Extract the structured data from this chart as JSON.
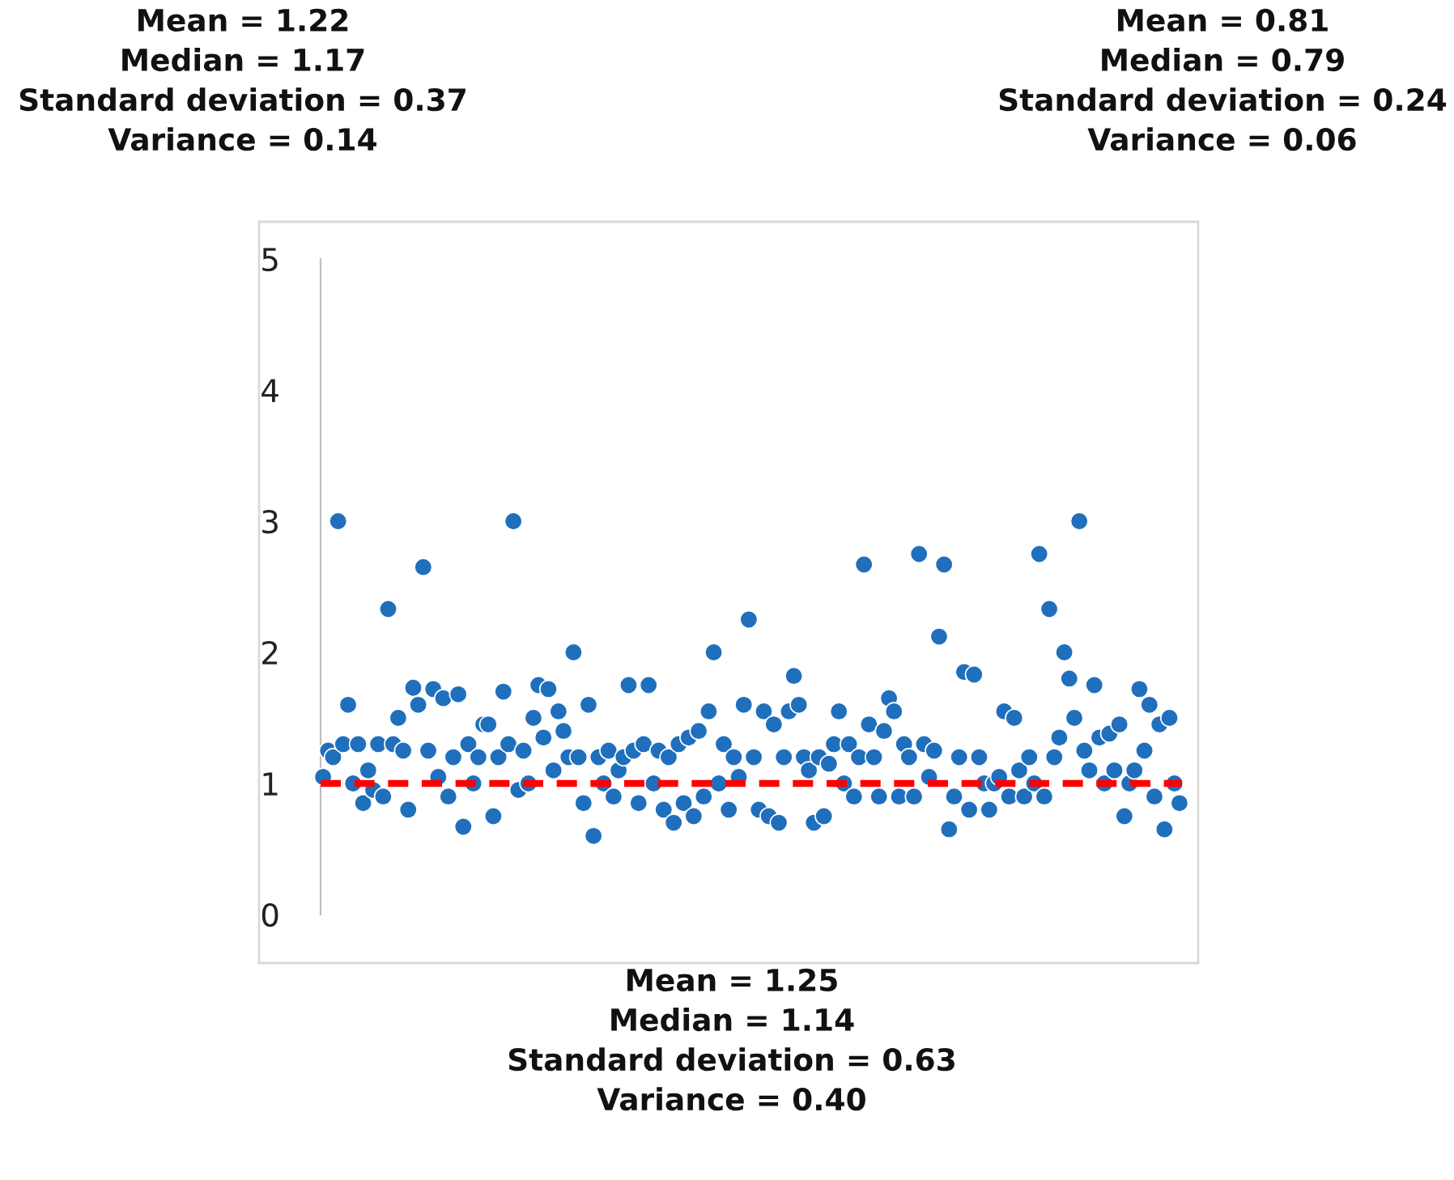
{
  "chart_data": {
    "type": "scatter",
    "categories": [
      null,
      null,
      null,
      null,
      null,
      null,
      null,
      null,
      null,
      null,
      null,
      null,
      null,
      null,
      null,
      null,
      null,
      null,
      null,
      null,
      null,
      null,
      null,
      null,
      null,
      null,
      null,
      null,
      null,
      null,
      null,
      null,
      null,
      null,
      null,
      null,
      null,
      null,
      null,
      null,
      null,
      null,
      null,
      null,
      null,
      null,
      null,
      null,
      null,
      null,
      null,
      null,
      null,
      null,
      null,
      null,
      null,
      null,
      null,
      null,
      null,
      null,
      null,
      null,
      null,
      null,
      null,
      null,
      null,
      null,
      null,
      null,
      null,
      null,
      null,
      null,
      null,
      null,
      null,
      null,
      null,
      null,
      null,
      null,
      null,
      null,
      null,
      null,
      null,
      null,
      null,
      null,
      null,
      null,
      null,
      null,
      null,
      null,
      null,
      null,
      null,
      null,
      null,
      null,
      null,
      null,
      null,
      null,
      null,
      null,
      null,
      null,
      null,
      null,
      null,
      null,
      null,
      null,
      null,
      null,
      null,
      null,
      null,
      null,
      null,
      null,
      null,
      null,
      null,
      null,
      null,
      null,
      null,
      null,
      null,
      null,
      null,
      null,
      null,
      null,
      null,
      null,
      null,
      null,
      null,
      null,
      null,
      null,
      null,
      null,
      null,
      null,
      null,
      null,
      null,
      null,
      null,
      null,
      null,
      null,
      null,
      null,
      null,
      null,
      null,
      null,
      null,
      null,
      null,
      null,
      null,
      null
    ],
    "series": [
      {
        "color": "#1f6fbd",
        "values": [
          1.05,
          1.25,
          1.2,
          3.0,
          1.3,
          1.6,
          1.0,
          1.3,
          0.85,
          1.1,
          0.95,
          1.3,
          0.9,
          2.33,
          1.3,
          1.5,
          1.25,
          0.8,
          1.73,
          1.6,
          2.65,
          1.25,
          1.72,
          1.05,
          1.65,
          0.9,
          1.2,
          1.68,
          0.67,
          1.3,
          1.0,
          1.2,
          1.45,
          1.45,
          0.75,
          1.2,
          1.7,
          1.3,
          3.0,
          0.95,
          1.25,
          1.0,
          1.5,
          1.75,
          1.35,
          1.72,
          1.1,
          1.55,
          1.4,
          1.2,
          2.0,
          1.2,
          0.85,
          1.6,
          0.6,
          1.2,
          1.0,
          1.25,
          0.9,
          1.1,
          1.2,
          1.75,
          1.25,
          0.85,
          1.3,
          1.75,
          1.0,
          1.25,
          0.8,
          1.2,
          0.7,
          1.3,
          0.85,
          1.35,
          0.75,
          1.4,
          0.9,
          1.55,
          2.0,
          1.0,
          1.3,
          0.8,
          1.2,
          1.05,
          1.6,
          2.25,
          1.2,
          0.8,
          1.55,
          0.75,
          1.45,
          0.7,
          1.2,
          1.55,
          1.82,
          1.6,
          1.2,
          1.1,
          0.7,
          1.2,
          0.75,
          1.15,
          1.3,
          1.55,
          1.0,
          1.3,
          0.9,
          1.2,
          2.67,
          1.45,
          1.2,
          0.9,
          1.4,
          1.65,
          1.55,
          0.9,
          1.3,
          1.2,
          0.9,
          2.75,
          1.3,
          1.05,
          1.25,
          2.12,
          2.67,
          0.65,
          0.9,
          1.2,
          1.85,
          0.8,
          1.83,
          1.2,
          1.0,
          0.8,
          1.0,
          1.05,
          1.55,
          0.9,
          1.5,
          1.1,
          0.9,
          1.2,
          1.0,
          2.75,
          0.9,
          2.33,
          1.2,
          1.35,
          2.0,
          1.8,
          1.5,
          3.0,
          1.25,
          1.1,
          1.75,
          1.35,
          1.0,
          1.38,
          1.1,
          1.45,
          0.75,
          1.0,
          1.1,
          1.72,
          1.25,
          1.6,
          0.9,
          1.45,
          0.65,
          1.5,
          1.0,
          0.85
        ]
      }
    ],
    "ylim": [
      0,
      5
    ],
    "yticks": [
      0,
      1,
      2,
      3,
      4,
      5
    ],
    "tick_labels": "y",
    "grid": false,
    "legend": false,
    "marker": "circle",
    "ref_lines": [
      {
        "axis": "y",
        "value": 1,
        "color": "#ff0000",
        "line_style": "dashed"
      }
    ],
    "annotations": [
      "Mean = 1.22\nMedian = 1.17\nStandard deviation = 0.37\nVariance = 0.14",
      "Mean = 0.81\nMedian = 0.79\nStandard deviation = 0.24\nVariance = 0.06",
      "Mean = 1.25\nMedian = 1.14\nStandard deviation = 0.63\nVariance = 0.40"
    ]
  }
}
